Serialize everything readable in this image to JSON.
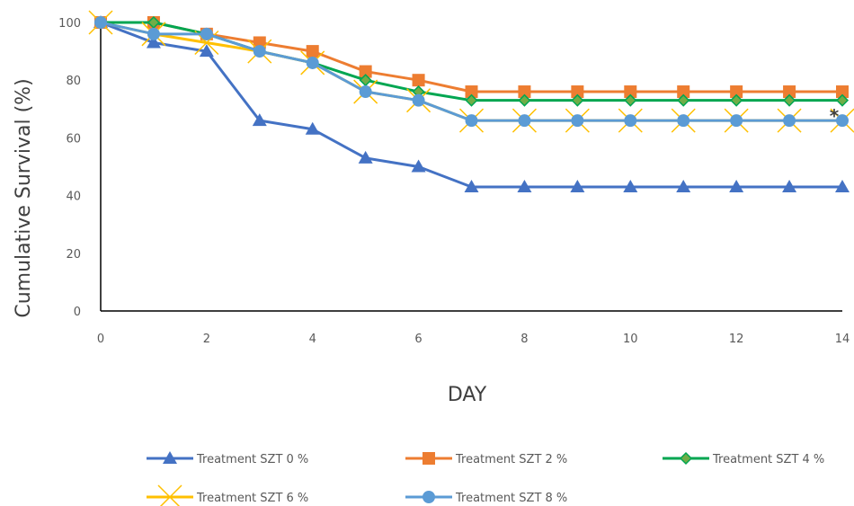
{
  "chart_data": {
    "type": "line",
    "title": "",
    "xlabel": "DAY",
    "ylabel": "Cumulative Survival (%)",
    "xlim": [
      0,
      14
    ],
    "ylim": [
      0,
      100
    ],
    "x_ticks": [
      0,
      2,
      4,
      6,
      8,
      10,
      12,
      14
    ],
    "y_ticks": [
      0,
      20,
      40,
      60,
      80,
      100
    ],
    "x": [
      0,
      1,
      2,
      3,
      4,
      5,
      6,
      7,
      8,
      9,
      10,
      11,
      12,
      13,
      14
    ],
    "grid": false,
    "legend_position": "bottom",
    "annotation": "*",
    "annotation_point": {
      "x": 14,
      "y": 66
    },
    "series": [
      {
        "name": "Treatment SZT 0 %",
        "color": "#4472C4",
        "marker": "triangle",
        "values": [
          100,
          93,
          90,
          66,
          63,
          53,
          50,
          43,
          43,
          43,
          43,
          43,
          43,
          43,
          43
        ]
      },
      {
        "name": "Treatment SZT 2 %",
        "color": "#ED7D31",
        "marker": "square",
        "values": [
          100,
          100,
          96,
          93,
          90,
          83,
          80,
          76,
          76,
          76,
          76,
          76,
          76,
          76,
          76
        ]
      },
      {
        "name": "Treatment SZT 4 %",
        "color": "#00A651",
        "marker": "diamond",
        "values": [
          100,
          100,
          96,
          90,
          86,
          80,
          76,
          73,
          73,
          73,
          73,
          73,
          73,
          73,
          73
        ]
      },
      {
        "name": "Treatment SZT 6 %",
        "color": "#FFC000",
        "marker": "x",
        "values": [
          100,
          96,
          93,
          90,
          86,
          76,
          73,
          66,
          66,
          66,
          66,
          66,
          66,
          66,
          66
        ]
      },
      {
        "name": "Treatment SZT 8 %",
        "color": "#5B9BD5",
        "marker": "circle",
        "values": [
          100,
          96,
          96,
          90,
          86,
          76,
          73,
          66,
          66,
          66,
          66,
          66,
          66,
          66,
          66
        ]
      }
    ]
  }
}
